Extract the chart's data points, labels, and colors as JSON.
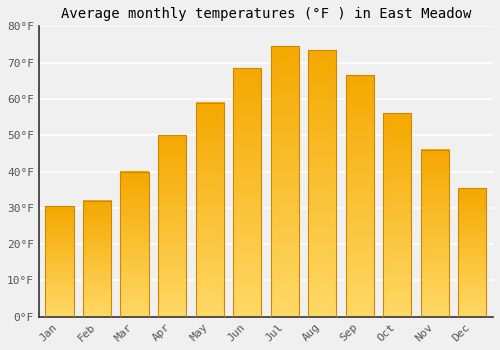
{
  "title": "Average monthly temperatures (°F ) in East Meadow",
  "months": [
    "Jan",
    "Feb",
    "Mar",
    "Apr",
    "May",
    "Jun",
    "Jul",
    "Aug",
    "Sep",
    "Oct",
    "Nov",
    "Dec"
  ],
  "temperatures": [
    30.5,
    32,
    40,
    50,
    59,
    68.5,
    74.5,
    73.5,
    66.5,
    56,
    46,
    35.5
  ],
  "bar_color_top": "#F5A800",
  "bar_color_bottom": "#FFD966",
  "bar_edge_color": "#CC8800",
  "ylim": [
    0,
    80
  ],
  "yticks": [
    0,
    10,
    20,
    30,
    40,
    50,
    60,
    70,
    80
  ],
  "ytick_labels": [
    "0°F",
    "10°F",
    "20°F",
    "30°F",
    "40°F",
    "50°F",
    "60°F",
    "70°F",
    "80°F"
  ],
  "background_color": "#f0f0f0",
  "grid_color": "#ffffff",
  "title_fontsize": 10,
  "tick_fontsize": 8,
  "bar_width": 0.75
}
